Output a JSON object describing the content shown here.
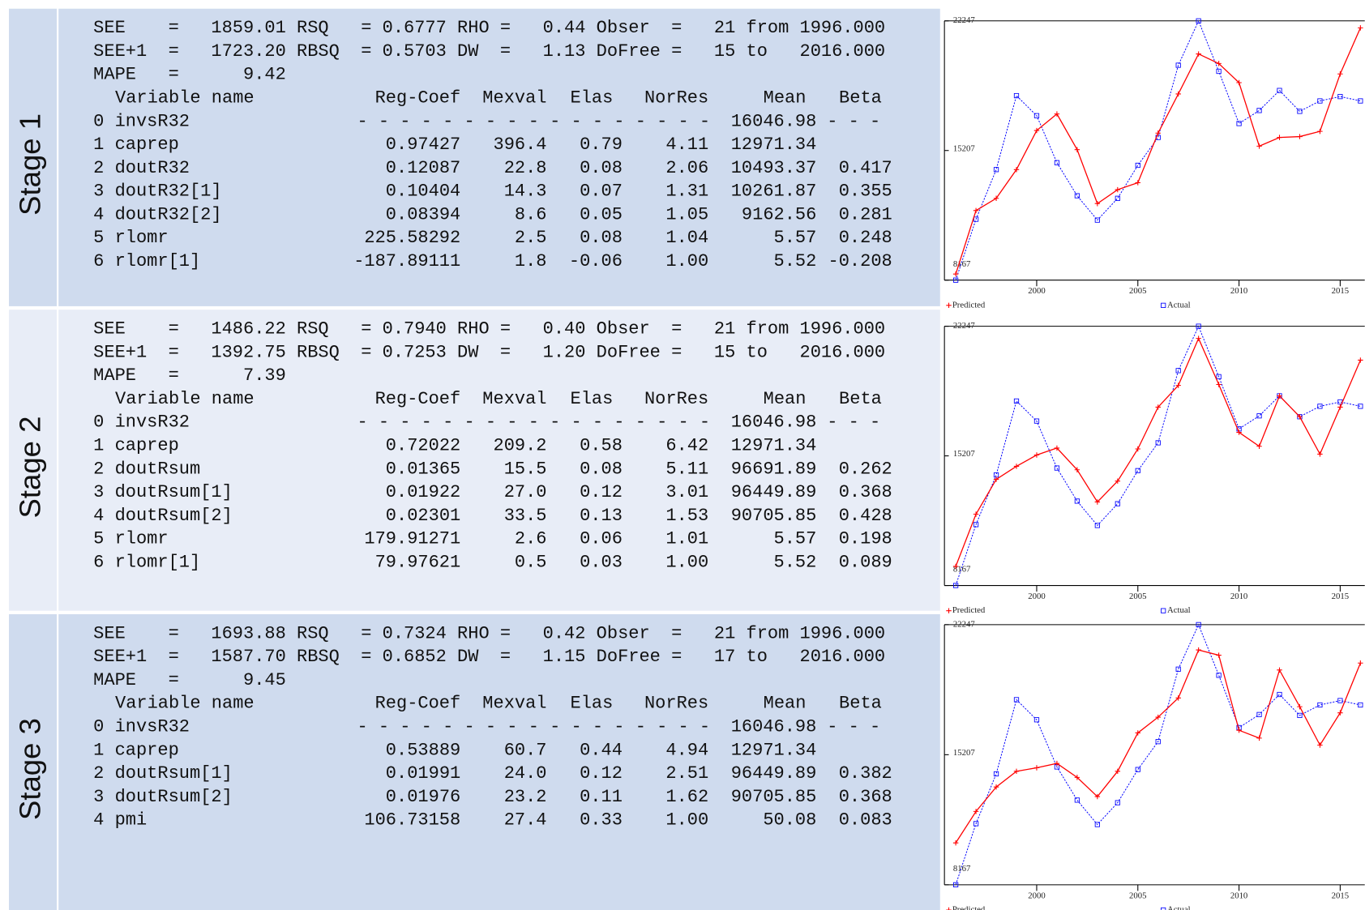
{
  "stages": [
    {
      "label": "Stage 1",
      "stats": [
        "SEE    =   1859.01 RSQ   = 0.6777 RHO =   0.44 Obser  =   21 from 1996.000",
        "SEE+1  =   1723.20 RBSQ  = 0.5703 DW  =   1.13 DoFree =   15 to   2016.000",
        "MAPE   =      9.42"
      ],
      "header": [
        "Variable name",
        "Reg-Coef",
        "Mexval",
        "Elas",
        "NorRes",
        "Mean",
        "Beta"
      ],
      "dependent": {
        "name": "0 invsR32",
        "dashes": "- - - - - - - - - - - - - - - - -",
        "mean": "16046.98",
        "beta": "- - -"
      },
      "rows": [
        {
          "name": "1 caprep",
          "cells": [
            "0.97427",
            "396.4",
            "0.79",
            "4.11",
            "12971.34"
          ]
        },
        {
          "name": "2 doutR32",
          "cells": [
            "0.12087",
            "22.8",
            "0.08",
            "2.06",
            "10493.37",
            "0.417"
          ]
        },
        {
          "name": "3 doutR32[1]",
          "cells": [
            "0.10404",
            "14.3",
            "0.07",
            "1.31",
            "10261.87",
            "0.355"
          ]
        },
        {
          "name": "4 doutR32[2]",
          "cells": [
            "0.08394",
            "8.6",
            "0.05",
            "1.05",
            "9162.56",
            "0.281"
          ]
        },
        {
          "name": "5 rlomr",
          "cells": [
            "225.58292",
            "2.5",
            "0.08",
            "1.04",
            "5.57",
            "0.248"
          ]
        },
        {
          "name": "6 rlomr[1]",
          "cells": [
            "-187.89111",
            "1.8",
            "-0.06",
            "1.00",
            "5.52",
            "-0.208"
          ]
        }
      ]
    },
    {
      "label": "Stage 2",
      "stats": [
        "SEE    =   1486.22 RSQ   = 0.7940 RHO =   0.40 Obser  =   21 from 1996.000",
        "SEE+1  =   1392.75 RBSQ  = 0.7253 DW  =   1.20 DoFree =   15 to   2016.000",
        "MAPE   =      7.39"
      ],
      "header": [
        "Variable name",
        "Reg-Coef",
        "Mexval",
        "Elas",
        "NorRes",
        "Mean",
        "Beta"
      ],
      "dependent": {
        "name": "0 invsR32",
        "dashes": "- - - - - - - - - - - - - - - - -",
        "mean": "16046.98",
        "beta": "- - -"
      },
      "rows": [
        {
          "name": "1 caprep",
          "cells": [
            "0.72022",
            "209.2",
            "0.58",
            "6.42",
            "12971.34"
          ]
        },
        {
          "name": "2 doutRsum",
          "cells": [
            "0.01365",
            "15.5",
            "0.08",
            "5.11",
            "96691.89",
            "0.262"
          ]
        },
        {
          "name": "3 doutRsum[1]",
          "cells": [
            "0.01922",
            "27.0",
            "0.12",
            "3.01",
            "96449.89",
            "0.368"
          ]
        },
        {
          "name": "4 doutRsum[2]",
          "cells": [
            "0.02301",
            "33.5",
            "0.13",
            "1.53",
            "90705.85",
            "0.428"
          ]
        },
        {
          "name": "5 rlomr",
          "cells": [
            "179.91271",
            "2.6",
            "0.06",
            "1.01",
            "5.57",
            "0.198"
          ]
        },
        {
          "name": "6 rlomr[1]",
          "cells": [
            "79.97621",
            "0.5",
            "0.03",
            "1.00",
            "5.52",
            "0.089"
          ]
        }
      ]
    },
    {
      "label": "Stage 3",
      "stats": [
        "SEE    =   1693.88 RSQ   = 0.7324 RHO =   0.42 Obser  =   21 from 1996.000",
        "SEE+1  =   1587.70 RBSQ  = 0.6852 DW  =   1.15 DoFree =   17 to   2016.000",
        "MAPE   =      9.45"
      ],
      "header": [
        "Variable name",
        "Reg-Coef",
        "Mexval",
        "Elas",
        "NorRes",
        "Mean",
        "Beta"
      ],
      "dependent": {
        "name": "0 invsR32",
        "dashes": "- - - - - - - - - - - - - - - - -",
        "mean": "16046.98",
        "beta": "- - -"
      },
      "rows": [
        {
          "name": "1 caprep",
          "cells": [
            "0.53889",
            "60.7",
            "0.44",
            "4.94",
            "12971.34"
          ]
        },
        {
          "name": "2 doutRsum[1]",
          "cells": [
            "0.01991",
            "24.0",
            "0.12",
            "2.51",
            "96449.89",
            "0.382"
          ]
        },
        {
          "name": "3 doutRsum[2]",
          "cells": [
            "0.01976",
            "23.2",
            "0.11",
            "1.62",
            "90705.85",
            "0.368"
          ]
        },
        {
          "name": "4 pmi",
          "cells": [
            "106.73158",
            "27.4",
            "0.33",
            "1.00",
            "50.08",
            "0.083"
          ]
        }
      ]
    }
  ],
  "chart_data": [
    {
      "type": "line",
      "x": [
        1996,
        1997,
        1998,
        1999,
        2000,
        2001,
        2002,
        2003,
        2004,
        2005,
        2006,
        2007,
        2008,
        2009,
        2010,
        2011,
        2012,
        2013,
        2014,
        2015,
        2016
      ],
      "series": [
        {
          "name": "Predicted",
          "color": "#ff0000",
          "values": [
            8498,
            11947,
            12609,
            14170,
            16294,
            17192,
            15254,
            12325,
            13081,
            13459,
            16152,
            18278,
            20452,
            19932,
            18891,
            15443,
            15916,
            15963,
            16246,
            19365,
            21869
          ]
        },
        {
          "name": "Actual",
          "color": "#0000ff",
          "values": [
            8167,
            11475,
            14170,
            18185,
            17097,
            14546,
            12750,
            11427,
            12609,
            14404,
            15916,
            19838,
            22247,
            19507,
            16672,
            17380,
            18467,
            17333,
            17900,
            18137,
            17900
          ]
        }
      ],
      "xlim": [
        1996,
        2016
      ],
      "xticks": [
        2000,
        2005,
        2010,
        2015
      ],
      "ylim": [
        8167,
        22247
      ],
      "yticks": [
        8167,
        15207,
        22247
      ]
    },
    {
      "type": "line",
      "x": [
        1996,
        1997,
        1998,
        1999,
        2000,
        2001,
        2002,
        2003,
        2004,
        2005,
        2006,
        2007,
        2008,
        2009,
        2010,
        2011,
        2012,
        2013,
        2014,
        2015,
        2016
      ],
      "series": [
        {
          "name": "Predicted",
          "color": "#ff0000",
          "values": [
            9207,
            12041,
            13932,
            14640,
            15254,
            15632,
            14451,
            12703,
            13837,
            15585,
            17853,
            19034,
            21586,
            19082,
            16483,
            15727,
            18467,
            17333,
            15301,
            17853,
            20405
          ]
        },
        {
          "name": "Actual",
          "color": "#0000ff",
          "values": [
            8167,
            11475,
            14170,
            18185,
            17097,
            14546,
            12750,
            11427,
            12609,
            14404,
            15916,
            19838,
            22247,
            19507,
            16672,
            17380,
            18467,
            17333,
            17900,
            18137,
            17900
          ]
        }
      ],
      "xlim": [
        1996,
        2016
      ],
      "xticks": [
        2000,
        2005,
        2010,
        2015
      ],
      "ylim": [
        8167,
        22247
      ],
      "yticks": [
        8167,
        15207,
        22247
      ]
    },
    {
      "type": "line",
      "x": [
        1996,
        1997,
        1998,
        1999,
        2000,
        2001,
        2002,
        2003,
        2004,
        2005,
        2006,
        2007,
        2008,
        2009,
        2010,
        2011,
        2012,
        2013,
        2014,
        2015,
        2016
      ],
      "series": [
        {
          "name": "Predicted",
          "color": "#ff0000",
          "values": [
            10435,
            12136,
            13459,
            14309,
            14498,
            14735,
            13979,
            12939,
            14309,
            16388,
            17238,
            18278,
            20877,
            20593,
            16530,
            16105,
            19791,
            17806,
            15727,
            17475,
            20168
          ]
        },
        {
          "name": "Actual",
          "color": "#0000ff",
          "values": [
            8167,
            11475,
            14170,
            18185,
            17097,
            14546,
            12750,
            11427,
            12609,
            14404,
            15916,
            19838,
            22247,
            19507,
            16672,
            17380,
            18467,
            17333,
            17900,
            18137,
            17900
          ]
        }
      ],
      "xlim": [
        1996,
        2016
      ],
      "xticks": [
        2000,
        2005,
        2010,
        2015
      ],
      "ylim": [
        8167,
        22247
      ],
      "yticks": [
        8167,
        15207,
        22247
      ]
    }
  ]
}
